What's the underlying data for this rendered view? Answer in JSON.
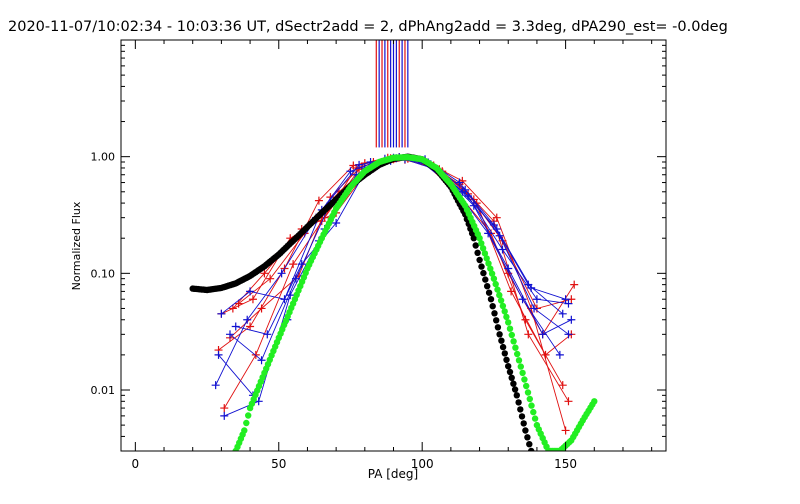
{
  "chart_data": {
    "type": "scatter",
    "title": "2020-11-07/10:02:34 - 10:03:36 UT, dSectr2add = 2, dPhAng2add = 3.3deg, dPA290_est= -0.0deg",
    "xlabel": "PA [deg]",
    "ylabel": "Normalized Flux",
    "xlim": [
      -5,
      185
    ],
    "ylim": [
      0.003,
      10
    ],
    "yscale": "log",
    "x_ticks": [
      0,
      50,
      100,
      150
    ],
    "x_tick_labels": [
      "0",
      "50",
      "100",
      "150"
    ],
    "y_ticks": [
      0.01,
      0.1,
      1.0
    ],
    "y_tick_labels": [
      "0.01",
      "0.10",
      "1.00"
    ],
    "colors": {
      "red": "#e01010",
      "blue": "#1010d0",
      "black": "#000000",
      "green": "#22ee22"
    },
    "peak_lines": {
      "red": [
        84,
        86,
        88,
        92,
        94
      ],
      "blue": [
        85,
        87,
        89,
        90,
        91,
        93,
        95
      ],
      "ymin": 1.2,
      "ymax": 10
    },
    "black_fit": {
      "name": "black model curve",
      "points": [
        [
          20,
          0.074
        ],
        [
          25,
          0.072
        ],
        [
          30,
          0.075
        ],
        [
          35,
          0.082
        ],
        [
          40,
          0.095
        ],
        [
          45,
          0.115
        ],
        [
          50,
          0.145
        ],
        [
          55,
          0.19
        ],
        [
          60,
          0.25
        ],
        [
          65,
          0.33
        ],
        [
          70,
          0.43
        ],
        [
          75,
          0.56
        ],
        [
          80,
          0.7
        ],
        [
          85,
          0.85
        ],
        [
          90,
          0.96
        ],
        [
          95,
          1.0
        ],
        [
          100,
          0.95
        ],
        [
          105,
          0.78
        ],
        [
          110,
          0.55
        ],
        [
          115,
          0.32
        ],
        [
          118,
          0.2
        ],
        [
          120,
          0.13
        ],
        [
          124,
          0.06
        ],
        [
          127,
          0.03
        ],
        [
          130,
          0.016
        ],
        [
          133,
          0.009
        ],
        [
          136,
          0.0045
        ],
        [
          138,
          0.003
        ]
      ]
    },
    "green_fit": {
      "name": "green model curve",
      "points": [
        [
          35,
          0.003
        ],
        [
          38,
          0.0045
        ],
        [
          40,
          0.007
        ],
        [
          45,
          0.014
        ],
        [
          50,
          0.028
        ],
        [
          55,
          0.055
        ],
        [
          60,
          0.11
        ],
        [
          65,
          0.2
        ],
        [
          70,
          0.36
        ],
        [
          75,
          0.55
        ],
        [
          80,
          0.75
        ],
        [
          85,
          0.9
        ],
        [
          90,
          0.98
        ],
        [
          95,
          0.99
        ],
        [
          100,
          0.95
        ],
        [
          105,
          0.8
        ],
        [
          110,
          0.58
        ],
        [
          115,
          0.38
        ],
        [
          120,
          0.2
        ],
        [
          125,
          0.09
        ],
        [
          130,
          0.038
        ],
        [
          135,
          0.014
        ],
        [
          140,
          0.005
        ],
        [
          144,
          0.003
        ],
        [
          148,
          0.003
        ],
        [
          152,
          0.0037
        ],
        [
          156,
          0.0055
        ],
        [
          160,
          0.008
        ]
      ]
    },
    "series": [
      {
        "name": "red-1",
        "color": "red",
        "x": [
          29,
          40,
          52,
          64,
          76,
          88,
          100,
          112,
          124,
          136,
          149
        ],
        "y": [
          0.022,
          0.035,
          0.11,
          0.42,
          0.84,
          0.98,
          0.91,
          0.5,
          0.22,
          0.04,
          0.011
        ]
      },
      {
        "name": "red-2",
        "color": "red",
        "x": [
          30,
          41,
          54,
          66,
          78,
          90,
          102,
          114,
          126,
          138,
          150
        ],
        "y": [
          0.045,
          0.06,
          0.2,
          0.3,
          0.78,
          0.95,
          0.88,
          0.62,
          0.3,
          0.05,
          0.0045
        ]
      },
      {
        "name": "red-3",
        "color": "red",
        "x": [
          31,
          42,
          55,
          65,
          77,
          89,
          101,
          113,
          125,
          137,
          151
        ],
        "y": [
          0.007,
          0.02,
          0.12,
          0.28,
          0.8,
          0.97,
          0.92,
          0.58,
          0.28,
          0.03,
          0.008
        ]
      },
      {
        "name": "red-4",
        "color": "red",
        "x": [
          33,
          44,
          57,
          68,
          80,
          92,
          104,
          116,
          128,
          140,
          152
        ],
        "y": [
          0.028,
          0.05,
          0.095,
          0.45,
          0.88,
          0.99,
          0.84,
          0.48,
          0.19,
          0.05,
          0.06
        ]
      },
      {
        "name": "red-5",
        "color": "red",
        "x": [
          34,
          45,
          58,
          70,
          82,
          94,
          106,
          118,
          130,
          142,
          153
        ],
        "y": [
          0.05,
          0.1,
          0.24,
          0.33,
          0.82,
          0.94,
          0.78,
          0.43,
          0.1,
          0.03,
          0.08
        ]
      },
      {
        "name": "red-6",
        "color": "red",
        "x": [
          36,
          47,
          59,
          71,
          83,
          95,
          107,
          119,
          131,
          143,
          152
        ],
        "y": [
          0.055,
          0.09,
          0.22,
          0.5,
          0.9,
          0.96,
          0.75,
          0.4,
          0.07,
          0.02,
          0.03
        ]
      },
      {
        "name": "blue-1",
        "color": "blue",
        "x": [
          28,
          39,
          51,
          63,
          75,
          87,
          99,
          111,
          123,
          135,
          148
        ],
        "y": [
          0.011,
          0.04,
          0.1,
          0.3,
          0.75,
          0.96,
          0.93,
          0.55,
          0.22,
          0.06,
          0.02
        ]
      },
      {
        "name": "blue-2",
        "color": "blue",
        "x": [
          29,
          41,
          53,
          64,
          77,
          89,
          101,
          113,
          125,
          137,
          149
        ],
        "y": [
          0.02,
          0.009,
          0.04,
          0.19,
          0.7,
          0.92,
          0.95,
          0.6,
          0.26,
          0.08,
          0.045
        ]
      },
      {
        "name": "blue-3",
        "color": "blue",
        "x": [
          30,
          40,
          52,
          65,
          78,
          90,
          102,
          114,
          126,
          138,
          150
        ],
        "y": [
          0.045,
          0.07,
          0.06,
          0.35,
          0.85,
          0.98,
          0.89,
          0.5,
          0.24,
          0.075,
          0.06
        ]
      },
      {
        "name": "blue-4",
        "color": "blue",
        "x": [
          31,
          43,
          54,
          66,
          79,
          91,
          103,
          115,
          127,
          139,
          151
        ],
        "y": [
          0.006,
          0.008,
          0.065,
          0.24,
          0.72,
          0.97,
          0.86,
          0.52,
          0.21,
          0.05,
          0.03
        ]
      },
      {
        "name": "blue-5",
        "color": "blue",
        "x": [
          33,
          44,
          56,
          68,
          80,
          92,
          104,
          116,
          128,
          140,
          151
        ],
        "y": [
          0.03,
          0.018,
          0.09,
          0.4,
          0.8,
          0.99,
          0.82,
          0.46,
          0.16,
          0.06,
          0.055
        ]
      },
      {
        "name": "blue-6",
        "color": "blue",
        "x": [
          35,
          46,
          58,
          70,
          82,
          94,
          106,
          118,
          130,
          142,
          152
        ],
        "y": [
          0.035,
          0.03,
          0.12,
          0.27,
          0.9,
          0.95,
          0.76,
          0.38,
          0.11,
          0.03,
          0.04
        ]
      }
    ]
  }
}
